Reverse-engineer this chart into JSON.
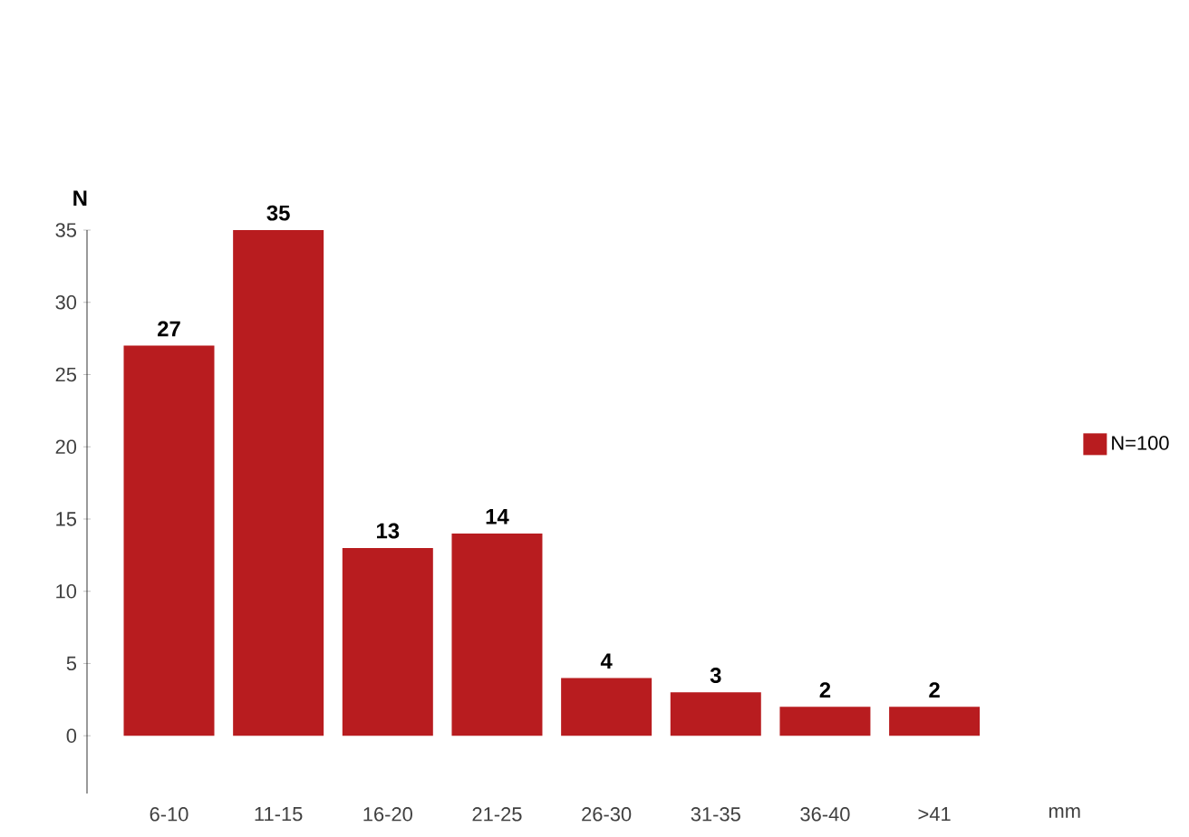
{
  "chart_data": {
    "type": "bar",
    "ylabel": "N",
    "xlabel": "mm",
    "categories": [
      "6-10",
      "11-15",
      "16-20",
      "21-25",
      "26-30",
      "31-35",
      "36-40",
      ">41"
    ],
    "series": [
      {
        "name": "N=100",
        "color": "#b81c1f",
        "values": [
          27,
          35,
          13,
          14,
          4,
          3,
          2,
          2
        ]
      }
    ],
    "ylim": [
      -4,
      35
    ],
    "yticks": [
      0,
      5,
      10,
      15,
      20,
      25,
      30,
      35
    ],
    "data_labels": true,
    "legend": "right",
    "grid": false
  }
}
